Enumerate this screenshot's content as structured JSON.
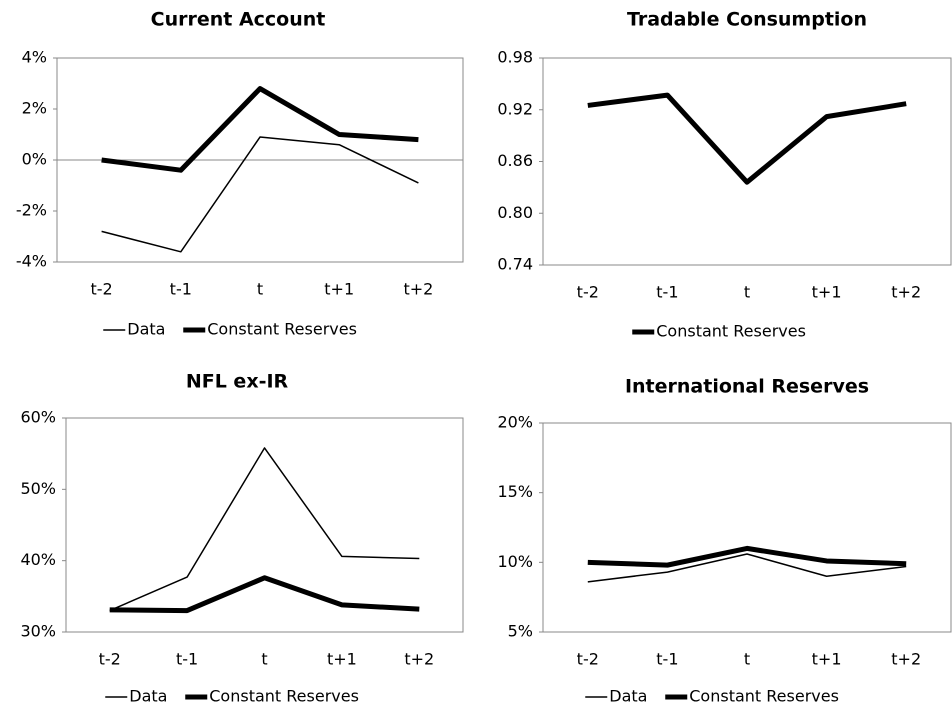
{
  "chart_data": [
    {
      "type": "line",
      "title": "Current Account",
      "categories": [
        "t-2",
        "t-1",
        "t",
        "t+1",
        "t+2"
      ],
      "ylim": [
        -4,
        4
      ],
      "yticks": [
        {
          "value": -4,
          "label": "-4%"
        },
        {
          "value": -2,
          "label": "-2%"
        },
        {
          "value": 0,
          "label": "0%"
        },
        {
          "value": 2,
          "label": "2%"
        },
        {
          "value": 4,
          "label": "4%"
        }
      ],
      "series": [
        {
          "name": "Data",
          "color": "#000000",
          "line_width": 1.5,
          "values": [
            -2.8,
            -3.6,
            0.9,
            0.6,
            -0.9
          ]
        },
        {
          "name": "Constant Reserves",
          "color": "#000000",
          "line_width": 5,
          "values": [
            0,
            -0.4,
            2.8,
            1.0,
            0.8
          ]
        }
      ]
    },
    {
      "type": "line",
      "title": "Tradable Consumption",
      "categories": [
        "t-2",
        "t-1",
        "t",
        "t+1",
        "t+2"
      ],
      "ylim": [
        0.74,
        0.98
      ],
      "yticks": [
        0.74,
        {
          "value": 0.8,
          "label": "0.80"
        },
        0.86,
        0.92,
        0.98
      ],
      "series": [
        {
          "name": "Constant Reserves",
          "color": "#000000",
          "line_width": 5,
          "values": [
            0.925,
            0.937,
            0.836,
            0.912,
            0.927
          ]
        }
      ]
    },
    {
      "type": "line",
      "title": "NFL ex-IR",
      "categories": [
        "t-2",
        "t-1",
        "t",
        "t+1",
        "t+2"
      ],
      "ylim": [
        30,
        60
      ],
      "yticks": [
        {
          "value": 30,
          "label": "30%"
        },
        {
          "value": 40,
          "label": "40%"
        },
        {
          "value": 50,
          "label": "50%"
        },
        {
          "value": 60,
          "label": "60%"
        }
      ],
      "series": [
        {
          "name": "Data",
          "color": "#000000",
          "line_width": 1.5,
          "values": [
            33,
            37.7,
            55.8,
            40.6,
            40.3
          ]
        },
        {
          "name": "Constant Reserves",
          "color": "#000000",
          "line_width": 5,
          "values": [
            33.1,
            33.0,
            37.6,
            33.8,
            33.2
          ]
        }
      ]
    },
    {
      "type": "line",
      "title": "International Reserves",
      "categories": [
        "t-2",
        "t-1",
        "t",
        "t+1",
        "t+2"
      ],
      "ylim": [
        5,
        20
      ],
      "yticks": [
        {
          "value": 5,
          "label": "5%"
        },
        {
          "value": 10,
          "label": "10%"
        },
        {
          "value": 15,
          "label": "15%"
        },
        {
          "value": 20,
          "label": "20%"
        }
      ],
      "series": [
        {
          "name": "Data",
          "color": "#000000",
          "line_width": 1.5,
          "values": [
            8.6,
            9.3,
            10.6,
            9.0,
            9.7
          ]
        },
        {
          "name": "Constant Reserves",
          "color": "#000000",
          "line_width": 5,
          "values": [
            10.0,
            9.8,
            11.0,
            10.1,
            9.9
          ]
        }
      ]
    }
  ]
}
